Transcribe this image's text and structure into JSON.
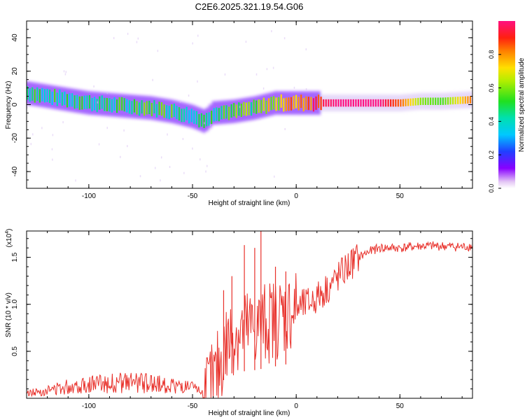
{
  "title": "C2E6.2025.321.19.54.G06",
  "chart_data": [
    {
      "type": "heatmap",
      "title": "C2E6.2025.321.19.54.G06",
      "xlabel": "Height of straight line (km)",
      "ylabel": "Frequency (Hz)",
      "xlim": [
        -130,
        85
      ],
      "ylim": [
        -50,
        50
      ],
      "x_ticks": [
        -100,
        -50,
        0,
        50
      ],
      "x_tick_labels": [
        "-100",
        "-50",
        "0",
        "50"
      ],
      "y_ticks": [
        -40,
        -20,
        0,
        20,
        40
      ],
      "y_tick_labels": [
        "-40",
        "-20",
        "0",
        "20",
        "40"
      ],
      "colorbar": {
        "label": "Normalized spectral amplitude",
        "range": [
          0,
          1
        ],
        "ticks": [
          0.0,
          0.2,
          0.4,
          0.6,
          0.8
        ],
        "tick_labels": [
          "0.0",
          "0.2",
          "0.4",
          "0.6",
          "0.8"
        ]
      },
      "ridge": {
        "x": [
          -130,
          -120,
          -110,
          -100,
          -90,
          -80,
          -70,
          -60,
          -50,
          -44,
          -40,
          -30,
          -20,
          -10,
          0,
          10,
          20,
          30,
          40,
          50,
          60,
          70,
          85
        ],
        "freq": [
          7,
          5,
          3,
          1,
          0,
          -1,
          -2,
          -4,
          -7,
          -10,
          -5,
          -4,
          -2,
          1,
          1,
          1,
          1,
          1,
          1,
          1,
          2,
          2,
          3
        ],
        "amplitude": [
          0.45,
          0.45,
          0.4,
          0.45,
          0.45,
          0.45,
          0.5,
          0.5,
          0.45,
          0.4,
          0.45,
          0.5,
          0.55,
          0.7,
          0.8,
          0.95,
          1.0,
          1.0,
          1.0,
          0.85,
          0.6,
          0.55,
          0.85
        ]
      }
    },
    {
      "type": "line",
      "xlabel": "Height of straight line (km)",
      "ylabel": "SNR (10 * v/v)",
      "y_multiplier_label": "(x10",
      "y_multiplier_exponent": "4",
      "y_multiplier_close": ")",
      "xlim": [
        -130,
        85
      ],
      "ylim": [
        0,
        1.78
      ],
      "x_ticks": [
        -100,
        -50,
        0,
        50
      ],
      "x_tick_labels": [
        "-100",
        "-50",
        "0",
        "50"
      ],
      "y_ticks": [
        0.5,
        1.0,
        1.5
      ],
      "y_tick_labels": [
        "0.5",
        "1.0",
        "1.5"
      ],
      "color": "#e8302a",
      "series": [
        {
          "name": "SNR",
          "x": [
            -130,
            -120,
            -110,
            -100,
            -90,
            -80,
            -70,
            -60,
            -50,
            -44,
            -40,
            -37,
            -34,
            -30,
            -25,
            -20,
            -15,
            -10,
            -5,
            0,
            5,
            10,
            15,
            20,
            25,
            30,
            35,
            40,
            50,
            60,
            70,
            80,
            85
          ],
          "y": [
            0.05,
            0.08,
            0.12,
            0.15,
            0.15,
            0.16,
            0.15,
            0.13,
            0.1,
            0.05,
            0.15,
            0.35,
            0.55,
            0.7,
            0.72,
            0.75,
            0.8,
            0.85,
            0.9,
            0.95,
            1.0,
            1.07,
            1.17,
            1.28,
            1.4,
            1.5,
            1.56,
            1.6,
            1.6,
            1.62,
            1.62,
            1.61,
            1.62
          ]
        }
      ],
      "spikes": [
        {
          "x": -35,
          "y": 1.15
        },
        {
          "x": -31,
          "y": 1.3
        },
        {
          "x": -25,
          "y": 1.63
        },
        {
          "x": -20,
          "y": 1.6
        },
        {
          "x": -17,
          "y": 1.78
        },
        {
          "x": -10,
          "y": 1.4
        },
        {
          "x": -5,
          "y": 1.35
        }
      ]
    }
  ]
}
